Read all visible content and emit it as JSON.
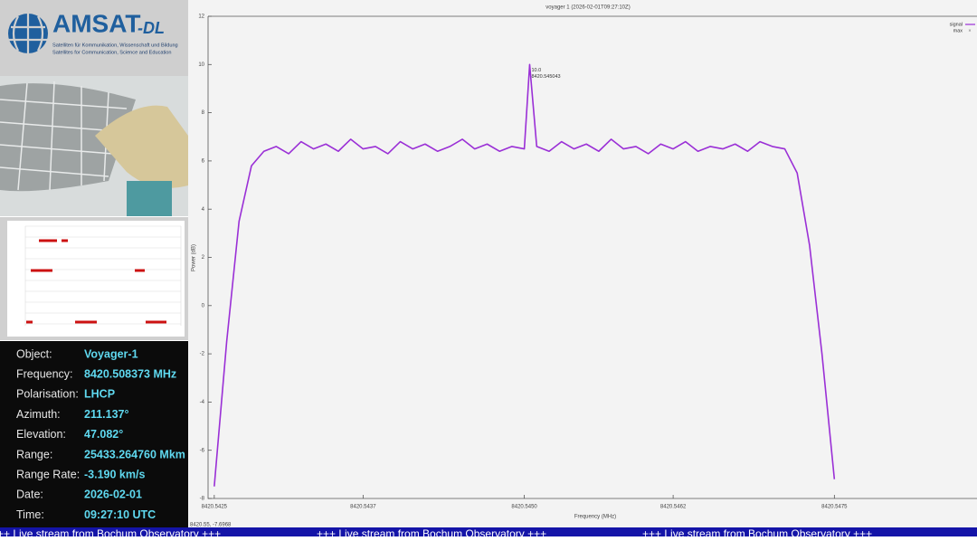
{
  "logo": {
    "name": "AMSAT",
    "suffix": "-DL",
    "tagline_de": "Satelliten für Kommunikation, Wissenschaft und Bildung",
    "tagline_en": "Satellites for Communication, Science and Education"
  },
  "info": {
    "rows": [
      [
        "Object:",
        "Voyager-1"
      ],
      [
        "Frequency:",
        "8420.508373 MHz"
      ],
      [
        "Polarisation:",
        "LHCP"
      ],
      [
        "Azimuth:",
        "211.137°"
      ],
      [
        "Elevation:",
        "47.082°"
      ],
      [
        "Range:",
        "25433.264760 Mkm"
      ],
      [
        "Range Rate:",
        "-3.190 km/s"
      ],
      [
        "Date:",
        "2026-02-01"
      ],
      [
        "Time:",
        "09:27:10 UTC"
      ]
    ]
  },
  "ticker": "+++ Live stream from Bochum Observatory +++",
  "chart_data": {
    "type": "line",
    "title": "voyager 1 (2026-02-01T09:27:10Z)",
    "x_label": "Frequency (MHz)",
    "y_label": "Power (dB)",
    "x": [
      8420.5425,
      8420.5426,
      8420.5427,
      8420.5428,
      8420.5429,
      8420.543,
      8420.5431,
      8420.5432,
      8420.5433,
      8420.5434,
      8420.5435,
      8420.5436,
      8420.5437,
      8420.5438,
      8420.5439,
      8420.544,
      8420.5441,
      8420.5442,
      8420.5443,
      8420.5444,
      8420.5445,
      8420.5446,
      8420.5447,
      8420.5448,
      8420.5449,
      8420.545,
      8420.545043,
      8420.5451,
      8420.5452,
      8420.5453,
      8420.5454,
      8420.5455,
      8420.5456,
      8420.5457,
      8420.5458,
      8420.5459,
      8420.546,
      8420.5461,
      8420.5462,
      8420.5463,
      8420.5464,
      8420.5465,
      8420.5466,
      8420.5467,
      8420.5468,
      8420.5469,
      8420.547,
      8420.5471,
      8420.5472,
      8420.5473,
      8420.5474,
      8420.5475
    ],
    "series": [
      {
        "name": "signal",
        "color": "#9a2fd6",
        "values": [
          -7.5,
          -1.5,
          3.5,
          5.8,
          6.4,
          6.6,
          6.3,
          6.8,
          6.5,
          6.7,
          6.4,
          6.9,
          6.5,
          6.6,
          6.3,
          6.8,
          6.5,
          6.7,
          6.4,
          6.6,
          6.9,
          6.5,
          6.7,
          6.4,
          6.6,
          6.5,
          10.0,
          6.6,
          6.4,
          6.8,
          6.5,
          6.7,
          6.4,
          6.9,
          6.5,
          6.6,
          6.3,
          6.7,
          6.5,
          6.8,
          6.4,
          6.6,
          6.5,
          6.7,
          6.4,
          6.8,
          6.6,
          6.5,
          5.5,
          2.5,
          -2.0,
          -7.2
        ]
      }
    ],
    "legend": {
      "corner": "top-right",
      "extra": [
        "max"
      ]
    },
    "annotations": [
      "10.0",
      "8420.545043"
    ],
    "cursor_readout": "8420.55, -7.6968",
    "xlim": [
      8420.54245,
      8420.54865
    ],
    "ylim": [
      -8,
      12
    ],
    "xticks": [
      8420.5425,
      8420.5437,
      {
        "value": 8420.545,
        "label": "8420.5450"
      },
      8420.5462,
      8420.5475
    ],
    "yticks": [
      -8,
      -6,
      -4,
      -2,
      0,
      2,
      4,
      6,
      8,
      10,
      12
    ],
    "grid": false
  }
}
